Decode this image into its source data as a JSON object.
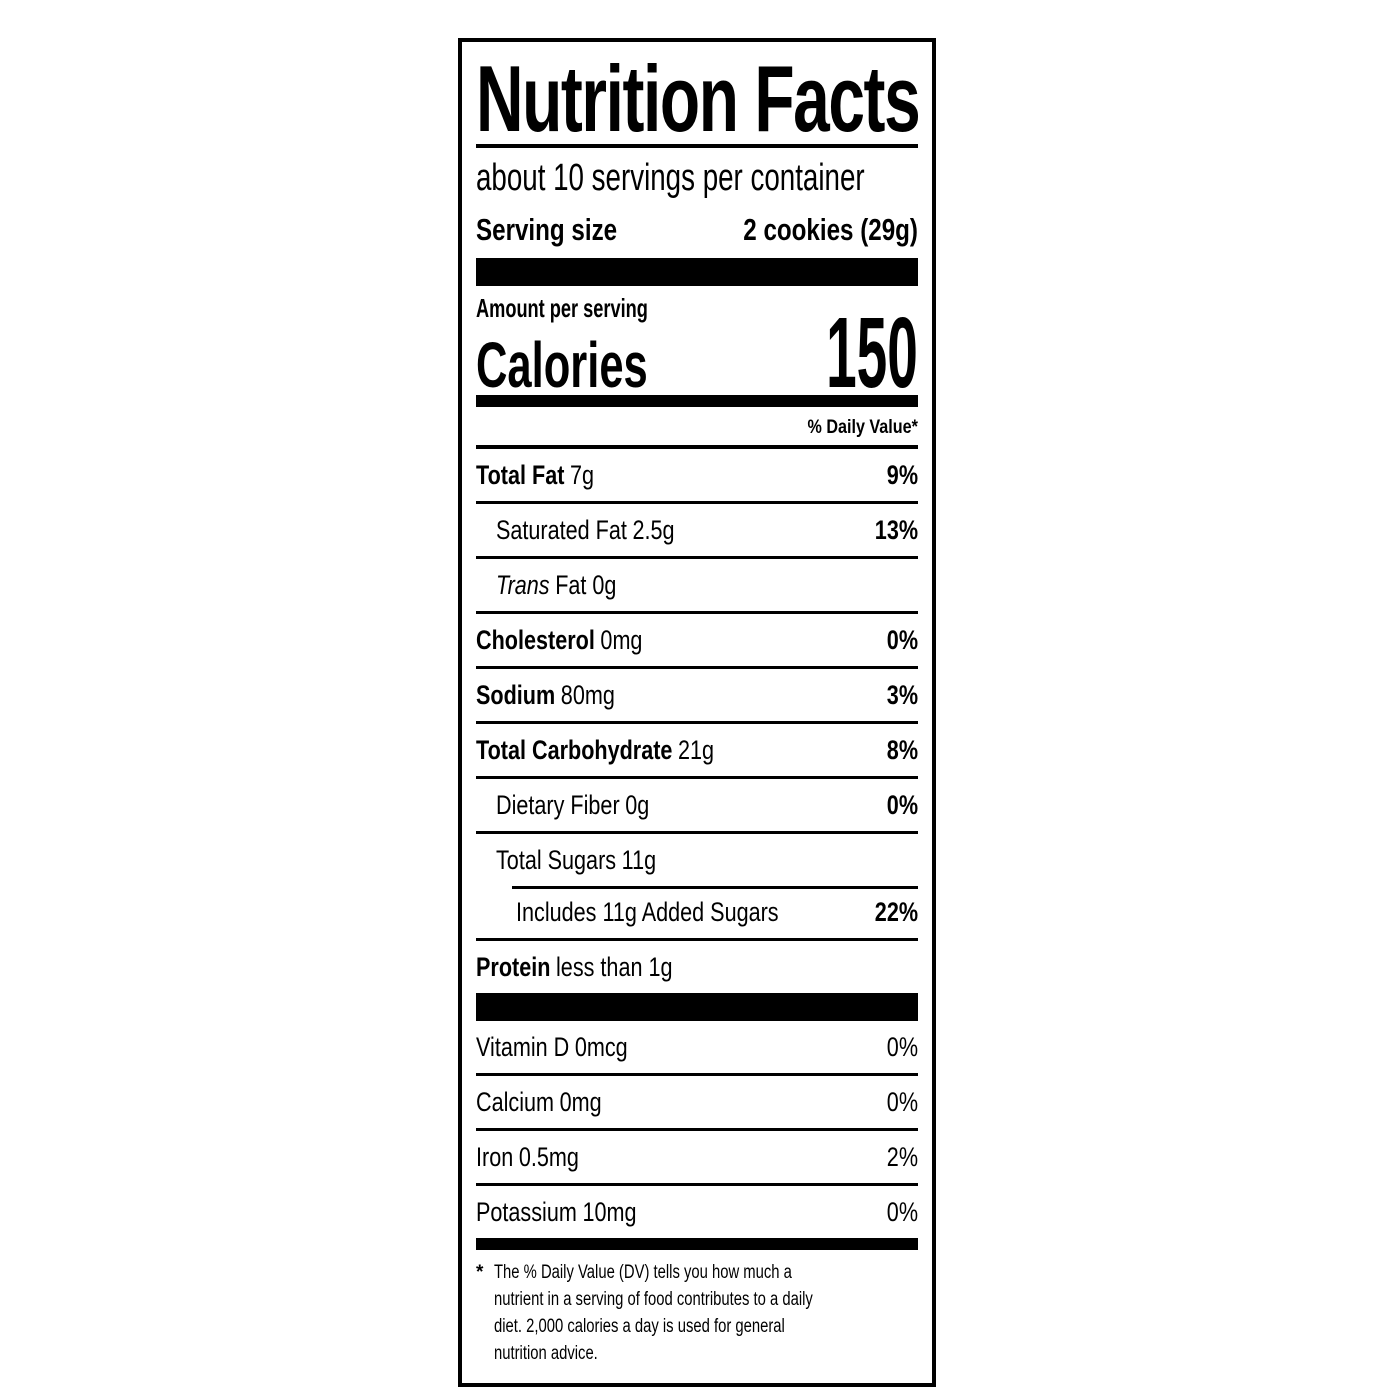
{
  "label": {
    "title": "Nutrition Facts",
    "servings_per_container": "about 10 servings per container",
    "serving_size_label": "Serving size",
    "serving_size_value": "2 cookies (29g)",
    "amount_per_serving": "Amount per serving",
    "calories_label": "Calories",
    "calories_value": "150",
    "daily_value_header": "% Daily Value*"
  },
  "nutrients": [
    {
      "name": "Total Fat",
      "amount": "7g",
      "pct": "9%"
    },
    {
      "name": "Saturated Fat",
      "amount": "2.5g",
      "pct": "13%"
    },
    {
      "name": "Trans",
      "amount": "Fat 0g",
      "pct": ""
    },
    {
      "name": "Cholesterol",
      "amount": "0mg",
      "pct": "0%"
    },
    {
      "name": "Sodium",
      "amount": "80mg",
      "pct": "3%"
    },
    {
      "name": "Total Carbohydrate",
      "amount": "21g",
      "pct": "8%"
    },
    {
      "name": "Dietary Fiber",
      "amount": "0g",
      "pct": "0%"
    },
    {
      "name": "Total Sugars",
      "amount": "11g",
      "pct": ""
    },
    {
      "name": "Includes 11g Added Sugars",
      "amount": "",
      "pct": "22%"
    },
    {
      "name": "Protein",
      "amount": "less than 1g",
      "pct": ""
    }
  ],
  "micronutrients": [
    {
      "name": "Vitamin D",
      "amount": "0mcg",
      "pct": "0%"
    },
    {
      "name": "Calcium",
      "amount": "0mg",
      "pct": "0%"
    },
    {
      "name": "Iron",
      "amount": "0.5mg",
      "pct": "2%"
    },
    {
      "name": "Potassium",
      "amount": "10mg",
      "pct": "0%"
    }
  ],
  "footnote": {
    "marker": "*",
    "text": "The % Daily Value (DV) tells you how much a nutrient in a serving of food contributes to a daily diet. 2,000 calories a day is used for general nutrition advice."
  },
  "colors": {
    "ink": "#000000",
    "background": "#ffffff"
  }
}
